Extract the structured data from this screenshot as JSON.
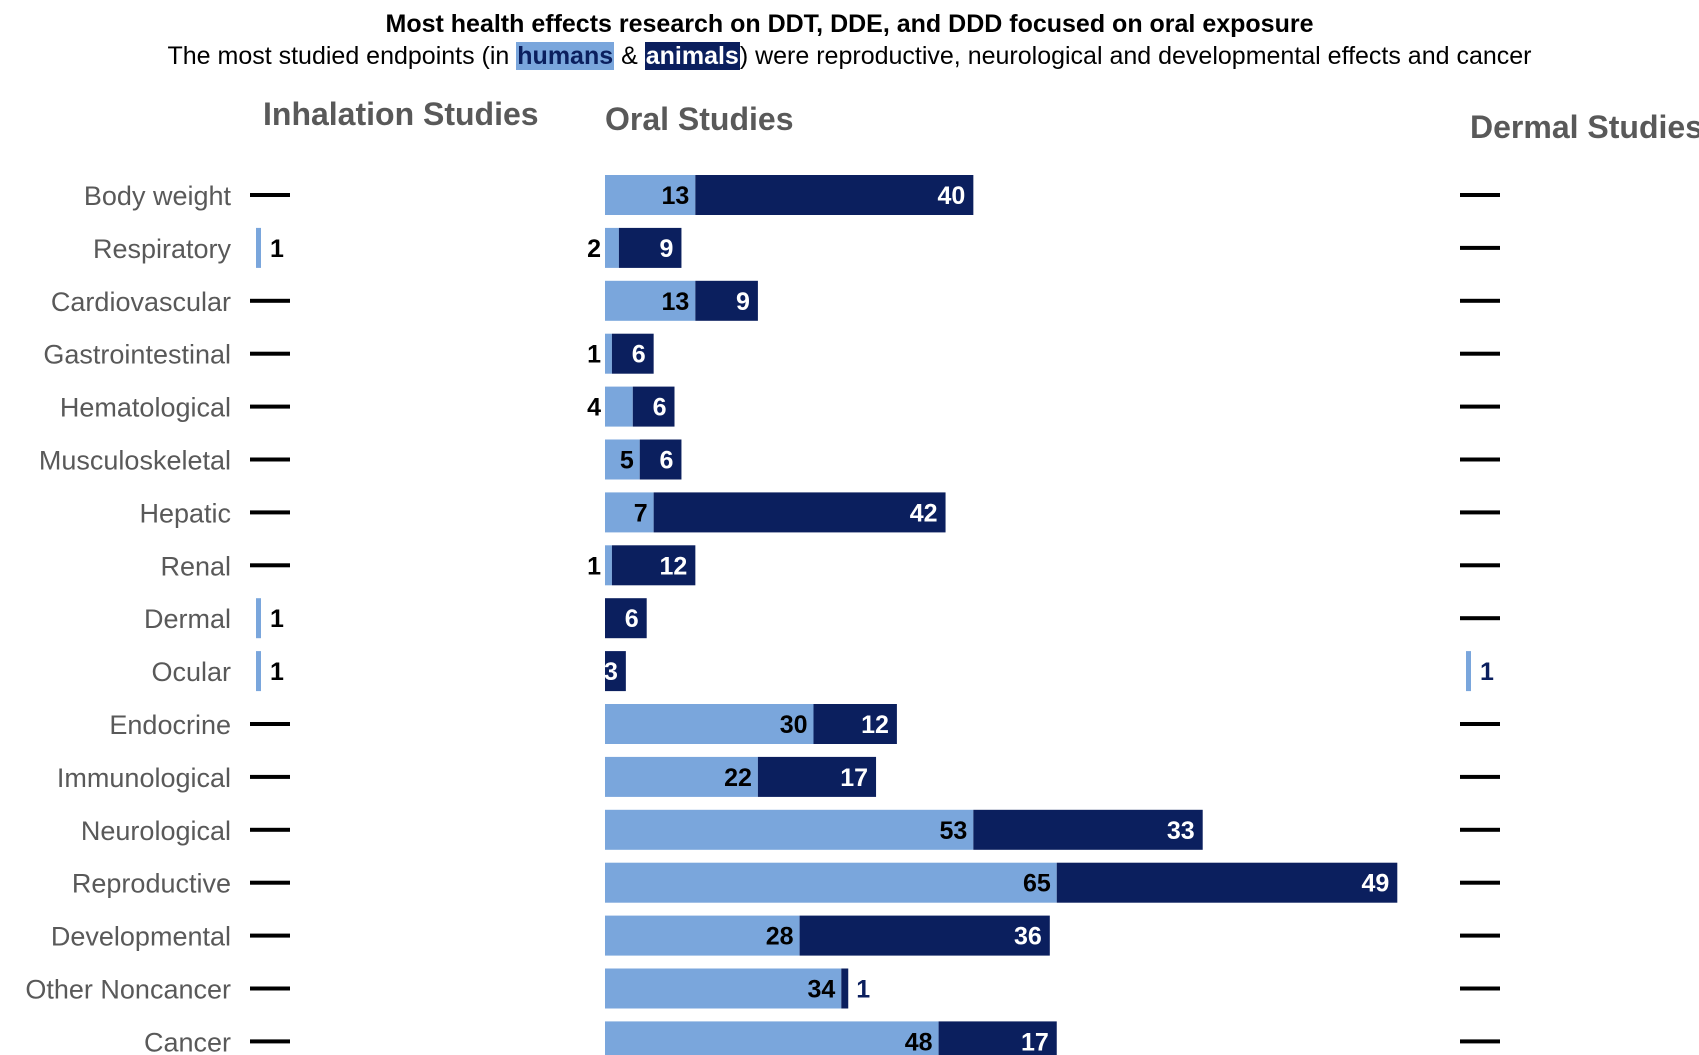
{
  "title": "Most health effects research on DDT, DDE, and DDD focused on oral exposure",
  "subtitle": {
    "part1": "The most studied endpoints (in ",
    "humans": "humans",
    "amp": " & ",
    "animals": "animals",
    "part2": ") were reproductive, neurological and developmental effects and cancer"
  },
  "colors": {
    "humans": "#7aa6dc",
    "animals": "#0b1f5e",
    "dash": "#000000",
    "text": "#595959"
  },
  "chart_data": {
    "type": "bar",
    "stacked": true,
    "orientation": "horizontal",
    "categories": [
      "Body weight",
      "Respiratory",
      "Cardiovascular",
      "Gastrointestinal",
      "Hematological",
      "Musculoskeletal",
      "Hepatic",
      "Renal",
      "Dermal",
      "Ocular",
      "Endocrine",
      "Immunological",
      "Neurological",
      "Reproductive",
      "Developmental",
      "Other Noncancer",
      "Cancer"
    ],
    "panels": [
      {
        "title": "Inhalation Studies",
        "series": [
          {
            "name": "humans",
            "values": [
              0,
              1,
              0,
              0,
              0,
              0,
              0,
              0,
              1,
              1,
              0,
              0,
              0,
              0,
              0,
              0,
              0
            ]
          },
          {
            "name": "animals",
            "values": [
              0,
              0,
              0,
              0,
              0,
              0,
              0,
              0,
              0,
              0,
              0,
              0,
              0,
              0,
              0,
              0,
              0
            ]
          }
        ]
      },
      {
        "title": "Oral Studies",
        "series": [
          {
            "name": "humans",
            "values": [
              13,
              2,
              13,
              1,
              4,
              5,
              7,
              1,
              0,
              0,
              30,
              22,
              53,
              65,
              28,
              34,
              48
            ]
          },
          {
            "name": "animals",
            "values": [
              40,
              9,
              9,
              6,
              6,
              6,
              42,
              12,
              6,
              3,
              12,
              17,
              33,
              49,
              36,
              1,
              17
            ]
          }
        ]
      },
      {
        "title": "Dermal Studies",
        "series": [
          {
            "name": "humans",
            "values": [
              0,
              0,
              0,
              0,
              0,
              0,
              0,
              0,
              0,
              1,
              0,
              0,
              0,
              0,
              0,
              0,
              0
            ]
          },
          {
            "name": "animals",
            "values": [
              0,
              0,
              0,
              0,
              0,
              0,
              0,
              0,
              0,
              0,
              0,
              0,
              0,
              0,
              0,
              0,
              0
            ]
          }
        ]
      }
    ],
    "legend": "inline in subtitle",
    "grid": false
  }
}
